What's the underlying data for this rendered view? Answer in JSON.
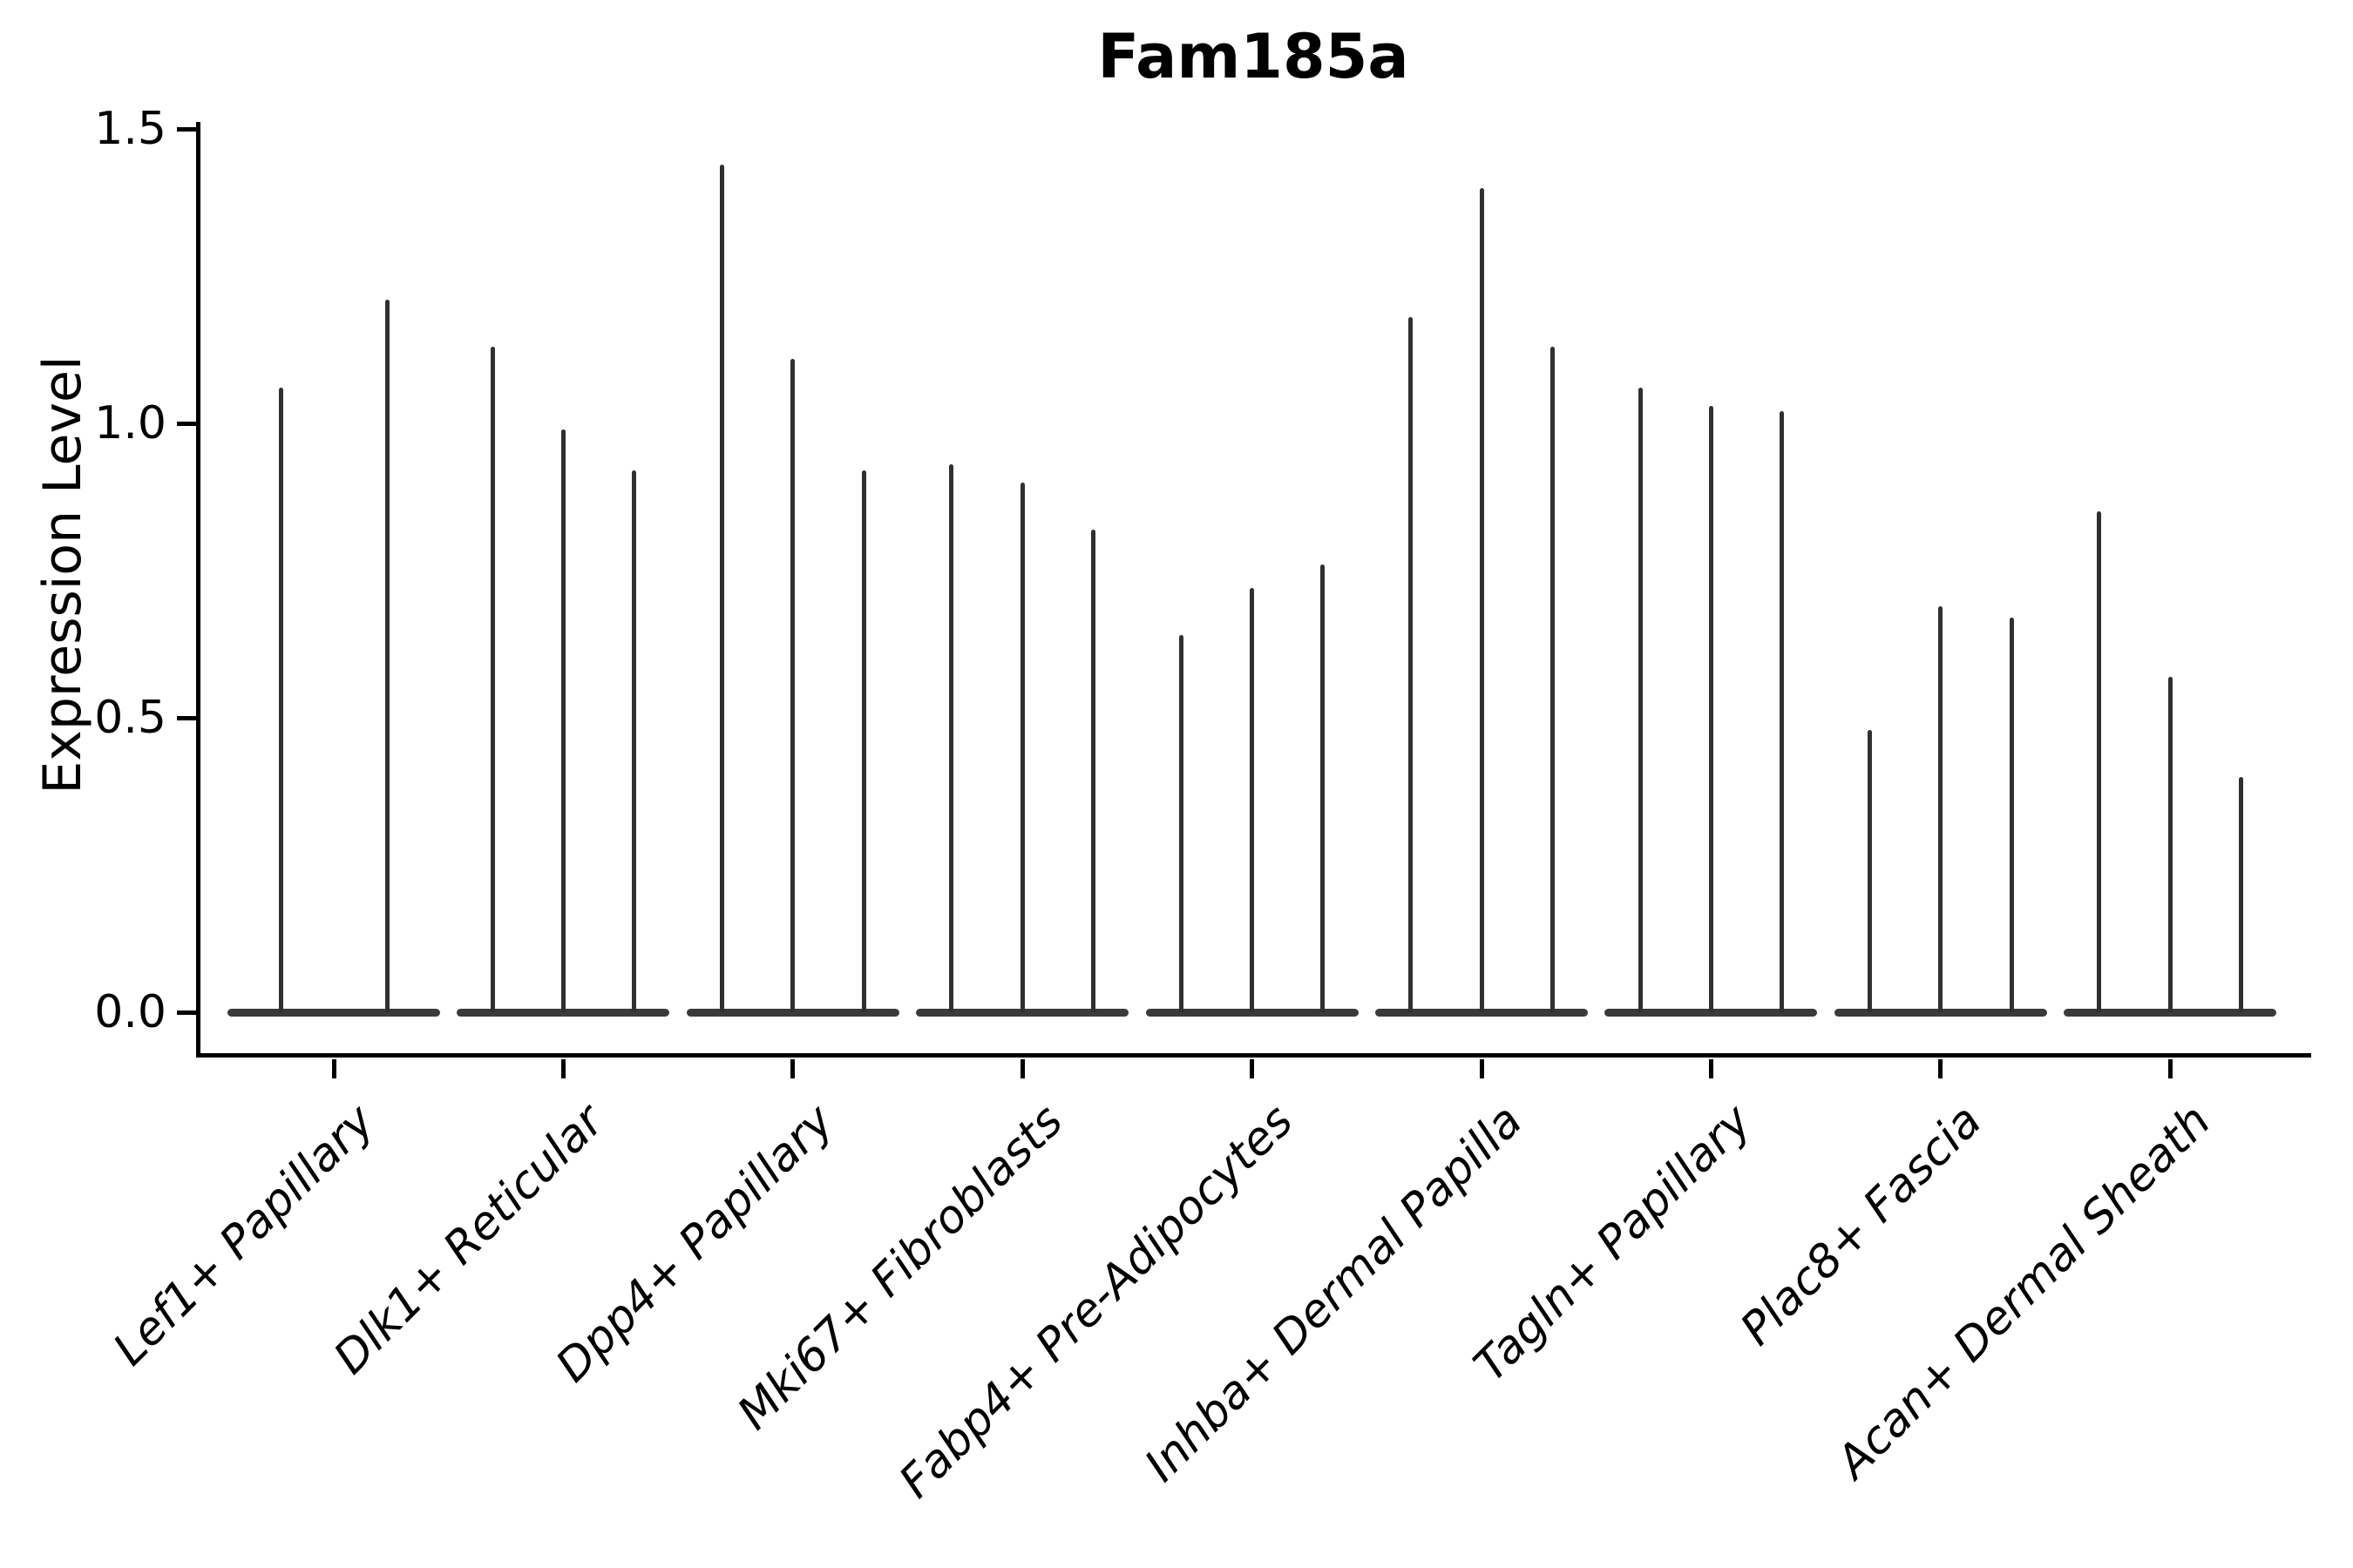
{
  "title": "Fam185a",
  "y_axis": {
    "label": "Expression Level",
    "ticks": [
      {
        "label": "0.0",
        "value": 0.0
      },
      {
        "label": "0.5",
        "value": 0.5
      },
      {
        "label": "1.0",
        "value": 1.0
      },
      {
        "label": "1.5",
        "value": 1.5
      }
    ]
  },
  "chart_data": {
    "type": "violin",
    "title": "Fam185a",
    "xlabel": "",
    "ylabel": "Expression Level",
    "ylim": [
      -0.07,
      1.51
    ],
    "yticks": [
      0.0,
      0.5,
      1.0,
      1.5
    ],
    "grid": false,
    "legend": "none",
    "description": "Violin plot of gene expression per fibroblast cell-type; each category contains narrow violins (flat base at 0 with a thin density spike whose top marks the maximum expression value).",
    "categories": [
      {
        "label": "Lef1+ Papillary",
        "spike_values": [
          1.06,
          1.21
        ]
      },
      {
        "label": "Dlk1+ Reticular",
        "spike_values": [
          1.13,
          0.99,
          0.92
        ]
      },
      {
        "label": "Dpp4+ Papillary",
        "spike_values": [
          1.44,
          1.11,
          0.92
        ]
      },
      {
        "label": "Mki67+ Fibroblasts",
        "spike_values": [
          0.93,
          0.9,
          0.82
        ]
      },
      {
        "label": "Fabp4+ Pre-Adipocytes",
        "spike_values": [
          0.64,
          0.72,
          0.76
        ]
      },
      {
        "label": "Inhba+ Dermal Papilla",
        "spike_values": [
          1.18,
          1.4,
          1.13
        ]
      },
      {
        "label": "Tagln+ Papillary",
        "spike_values": [
          1.06,
          1.03,
          1.02
        ]
      },
      {
        "label": "Plac8+ Fascia",
        "spike_values": [
          0.48,
          0.69,
          0.67
        ]
      },
      {
        "label": "Acan+ Dermal Sheath",
        "spike_values": [
          0.85,
          0.57,
          0.4
        ]
      }
    ],
    "colors": {
      "violin": "#303030",
      "axis": "#000000",
      "text": "#000000"
    }
  }
}
